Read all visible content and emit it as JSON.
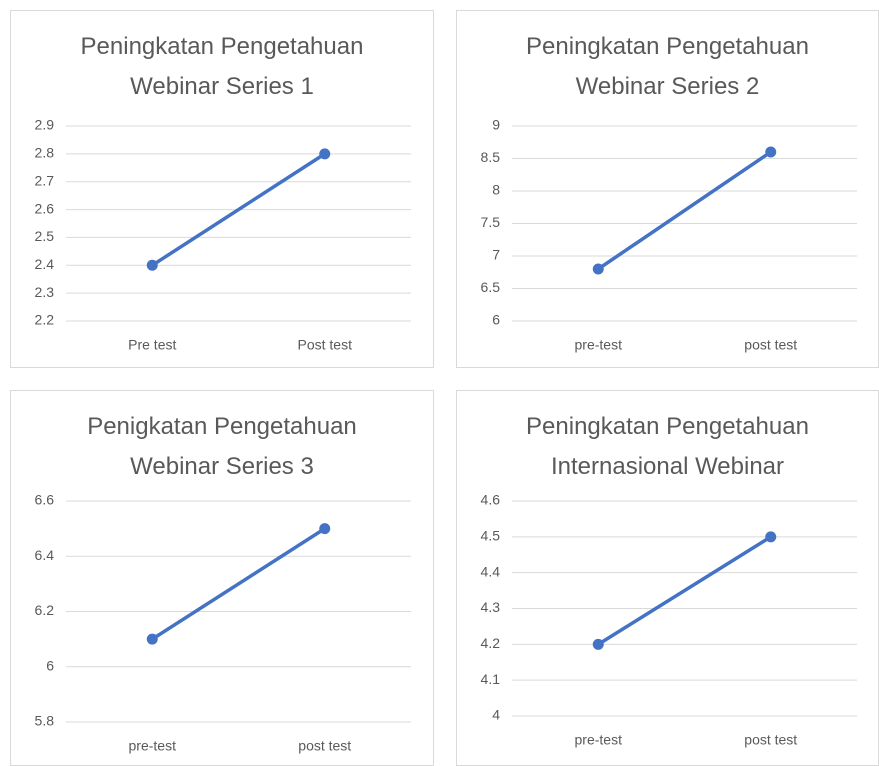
{
  "chart_data": [
    {
      "type": "line",
      "title": "Peningkatan Pengetahuan Webinar Series 1",
      "categories": [
        "Pre test",
        "Post test"
      ],
      "values": [
        2.4,
        2.8
      ],
      "color": "#4472c4",
      "ylim": [
        2.2,
        2.9
      ],
      "yticks": [
        2.2,
        2.3,
        2.4,
        2.5,
        2.6,
        2.7,
        2.8,
        2.9
      ],
      "grid": true
    },
    {
      "type": "line",
      "title": "Peningkatan Pengetahuan Webinar Series 2",
      "categories": [
        "pre-test",
        "post test"
      ],
      "values": [
        6.8,
        8.6
      ],
      "color": "#4472c4",
      "ylim": [
        6,
        9
      ],
      "yticks": [
        6,
        6.5,
        7,
        7.5,
        8,
        8.5,
        9
      ],
      "grid": true
    },
    {
      "type": "line",
      "title": "Penigkatan Pengetahuan Webinar Series 3",
      "categories": [
        "pre-test",
        "post test"
      ],
      "values": [
        6.1,
        6.5
      ],
      "color": "#4472c4",
      "ylim": [
        5.8,
        6.6
      ],
      "yticks": [
        5.8,
        6,
        6.2,
        6.4,
        6.6
      ],
      "grid": true
    },
    {
      "type": "line",
      "title": "Peningkatan Pengetahuan Internasional Webinar",
      "categories": [
        "pre-test",
        "post test"
      ],
      "values": [
        4.2,
        4.5
      ],
      "color": "#4472c4",
      "ylim": [
        4,
        4.6
      ],
      "yticks": [
        4,
        4.1,
        4.2,
        4.3,
        4.4,
        4.5,
        4.6
      ],
      "grid": true
    }
  ]
}
